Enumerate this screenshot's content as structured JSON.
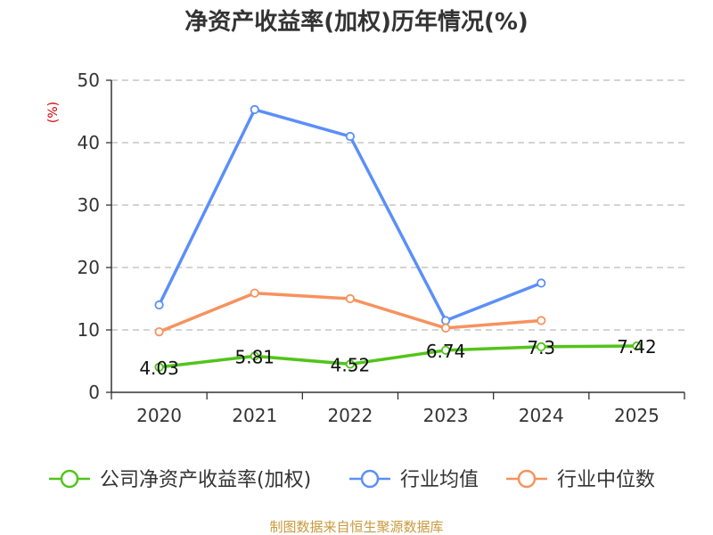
{
  "chart_data": {
    "type": "line",
    "title": "净资产收益率(加权)历年情况(%)",
    "y_unit": "(%)",
    "categories": [
      "2020",
      "2021",
      "2022",
      "2023",
      "2024",
      "2025"
    ],
    "ylim": [
      0,
      50
    ],
    "yticks": [
      "0",
      "10",
      "20",
      "30",
      "40",
      "50"
    ],
    "grid": true,
    "legend_position": "bottom",
    "series": [
      {
        "name": "公司净资产收益率(加权)",
        "color": "#52c41a",
        "values": [
          4.03,
          5.81,
          4.52,
          6.74,
          7.3,
          7.42
        ],
        "labels": [
          "4.03",
          "5.81",
          "4.52",
          "6.74",
          "7.3",
          "7.42"
        ]
      },
      {
        "name": "行业均值",
        "color": "#5b8ff9",
        "values": [
          14.0,
          45.3,
          41.0,
          11.5,
          17.5,
          null
        ]
      },
      {
        "name": "行业中位数",
        "color": "#f7925e",
        "values": [
          9.7,
          15.9,
          15.0,
          10.3,
          11.5,
          null
        ]
      }
    ]
  },
  "source_note": "制图数据来自恒生聚源数据库"
}
